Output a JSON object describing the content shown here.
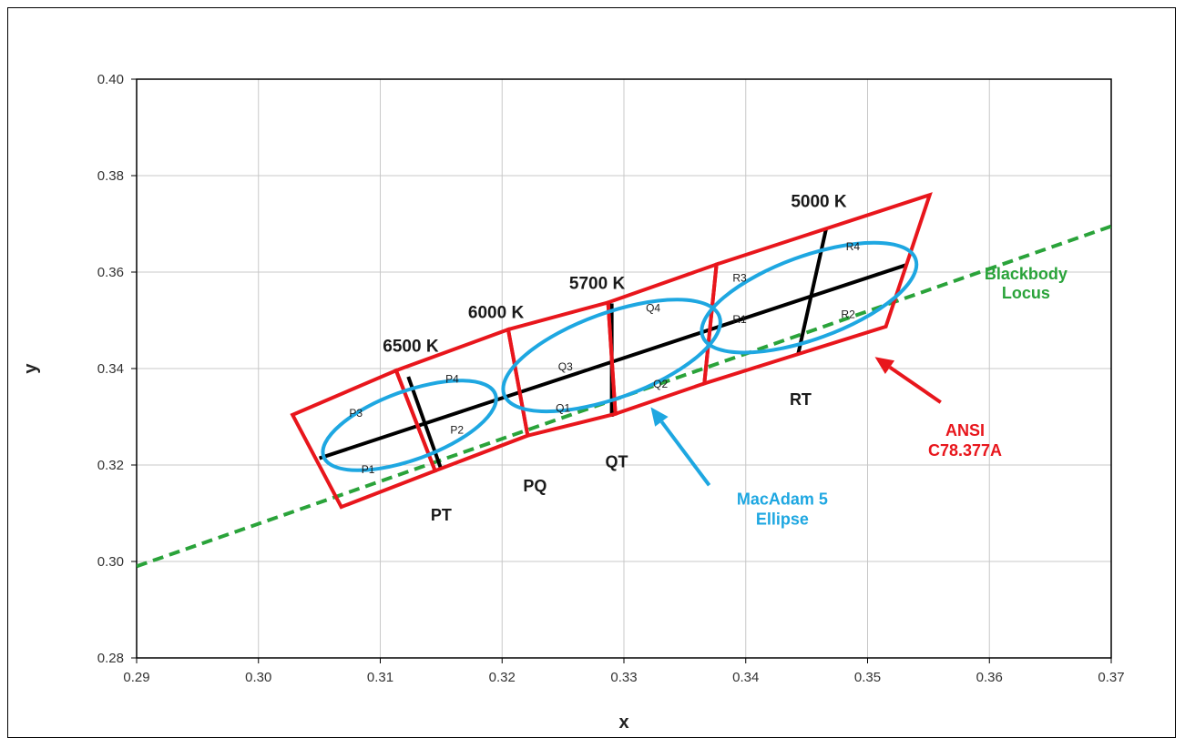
{
  "colors": {
    "ansi": "#e8161c",
    "macadam": "#1ea7e1",
    "blackbody": "#2aa33a",
    "center_lines": "#000000",
    "grid": "#c8c8c8"
  },
  "chart_data": {
    "type": "scatter",
    "xlabel": "x",
    "ylabel": "y",
    "xlim": [
      0.29,
      0.37
    ],
    "ylim": [
      0.28,
      0.4
    ],
    "x_ticks": [
      "0.29",
      "0.30",
      "0.31",
      "0.32",
      "0.33",
      "0.34",
      "0.35",
      "0.36",
      "0.37"
    ],
    "y_ticks": [
      "0.28",
      "0.30",
      "0.32",
      "0.34",
      "0.36",
      "0.38",
      "0.40"
    ],
    "grid": true,
    "blackbody_locus": {
      "label_line1": "Blackbody",
      "label_line2": "Locus",
      "points": [
        [
          0.29,
          0.299
        ],
        [
          0.37,
          0.3695
        ]
      ]
    },
    "ansi_quads": [
      {
        "name": "PT",
        "points": [
          [
            0.3028,
            0.3304
          ],
          [
            0.3113,
            0.3396
          ],
          [
            0.3145,
            0.3188
          ],
          [
            0.3068,
            0.3113
          ]
        ]
      },
      {
        "name": "PQ",
        "points": [
          [
            0.3113,
            0.3396
          ],
          [
            0.3205,
            0.3481
          ],
          [
            0.3221,
            0.3261
          ],
          [
            0.3145,
            0.3188
          ]
        ]
      },
      {
        "name": "QT",
        "points": [
          [
            0.3205,
            0.3481
          ],
          [
            0.3287,
            0.3537
          ],
          [
            0.3293,
            0.3306
          ],
          [
            0.3221,
            0.3261
          ]
        ]
      },
      {
        "name": "Q-R",
        "points": [
          [
            0.3287,
            0.3537
          ],
          [
            0.3376,
            0.3616
          ],
          [
            0.3366,
            0.3369
          ],
          [
            0.3293,
            0.3306
          ]
        ]
      },
      {
        "name": "RT",
        "points": [
          [
            0.3376,
            0.3616
          ],
          [
            0.3551,
            0.376
          ],
          [
            0.3515,
            0.3487
          ],
          [
            0.3366,
            0.3369
          ]
        ]
      }
    ],
    "center_line": [
      [
        0.305,
        0.3214
      ],
      [
        0.3532,
        0.3615
      ]
    ],
    "cct_lines": [
      {
        "cct": "6500 K",
        "label": "6500 K",
        "points": [
          [
            0.3123,
            0.3383
          ],
          [
            0.315,
            0.3191
          ]
        ]
      },
      {
        "cct": "5700 K",
        "label": "5700 K",
        "points": [
          [
            0.329,
            0.3535
          ],
          [
            0.329,
            0.33
          ]
        ]
      },
      {
        "cct": "5000 K",
        "label": "5000 K",
        "points": [
          [
            0.3466,
            0.369
          ],
          [
            0.3443,
            0.343
          ]
        ]
      }
    ],
    "cct_extra_labels": [
      {
        "label": "6000 K",
        "at": [
          0.3195,
          0.3505
        ]
      }
    ],
    "macadam_ellipses": [
      {
        "name": "P",
        "center": [
          0.3124,
          0.3282
        ],
        "rx": 0.0075,
        "ry": 0.0071,
        "angle": 20
      },
      {
        "name": "Q",
        "center": [
          0.329,
          0.3427
        ],
        "rx": 0.0094,
        "ry": 0.0088,
        "angle": 20
      },
      {
        "name": "R",
        "center": [
          0.3452,
          0.3547
        ],
        "rx": 0.0093,
        "ry": 0.0086,
        "angle": 20
      }
    ],
    "quadrant_labels": [
      {
        "text": "P1",
        "at": [
          0.309,
          0.3183
        ]
      },
      {
        "text": "P2",
        "at": [
          0.3163,
          0.3265
        ]
      },
      {
        "text": "P3",
        "at": [
          0.308,
          0.33
        ]
      },
      {
        "text": "P4",
        "at": [
          0.3159,
          0.3371
        ]
      },
      {
        "text": "Q1",
        "at": [
          0.325,
          0.331
        ]
      },
      {
        "text": "Q2",
        "at": [
          0.333,
          0.336
        ]
      },
      {
        "text": "Q3",
        "at": [
          0.3252,
          0.3396
        ]
      },
      {
        "text": "Q4",
        "at": [
          0.3324,
          0.3518
        ]
      },
      {
        "text": "R1",
        "at": [
          0.3395,
          0.3494
        ]
      },
      {
        "text": "R2",
        "at": [
          0.3484,
          0.3505
        ]
      },
      {
        "text": "R3",
        "at": [
          0.3395,
          0.358
        ]
      },
      {
        "text": "R4",
        "at": [
          0.3488,
          0.3645
        ]
      }
    ],
    "bin_labels": [
      {
        "text": "PT",
        "at": [
          0.315,
          0.3085
        ]
      },
      {
        "text": "PQ",
        "at": [
          0.3227,
          0.3145
        ]
      },
      {
        "text": "QT",
        "at": [
          0.3294,
          0.3195
        ]
      },
      {
        "text": "RT",
        "at": [
          0.3445,
          0.3325
        ]
      }
    ],
    "annotations": [
      {
        "text_lines": [
          "MacAdam 5",
          "Ellipse"
        ],
        "color_key": "macadam",
        "at": [
          0.343,
          0.3118
        ]
      },
      {
        "text_lines": [
          "ANSI",
          "C78.377A"
        ],
        "color_key": "ansi",
        "at": [
          0.358,
          0.326
        ]
      }
    ],
    "arrows": [
      {
        "color_key": "macadam",
        "from": [
          0.337,
          0.3158
        ],
        "to": [
          0.3322,
          0.332
        ]
      },
      {
        "color_key": "ansi",
        "from": [
          0.356,
          0.333
        ],
        "to": [
          0.3506,
          0.3424
        ]
      }
    ]
  }
}
